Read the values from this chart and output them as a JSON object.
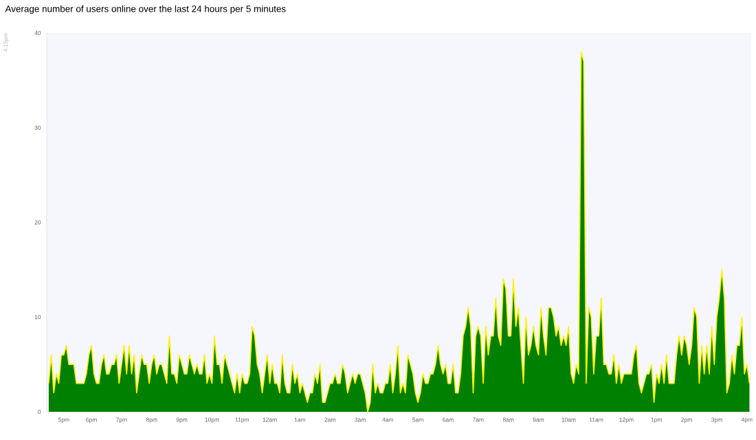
{
  "chart_data": {
    "type": "area",
    "title": "Average number of users online over the last 24 hours per 5 minutes",
    "annotations": [
      "4:15pm"
    ],
    "color": "#008000",
    "ylim": [
      0,
      40
    ],
    "yticks": [
      0,
      10,
      20,
      30,
      40
    ],
    "categories": [
      null,
      null,
      null,
      null,
      null,
      null,
      "5pm",
      null,
      null,
      null,
      null,
      null,
      null,
      null,
      null,
      null,
      null,
      "6pm",
      null,
      null,
      null,
      null,
      null,
      null,
      null,
      null,
      null,
      null,
      null,
      "7pm",
      null,
      null,
      null,
      null,
      null,
      null,
      null,
      null,
      null,
      null,
      null,
      "8pm",
      null,
      null,
      null,
      null,
      null,
      null,
      null,
      null,
      null,
      null,
      null,
      "9pm",
      null,
      null,
      null,
      null,
      null,
      null,
      null,
      null,
      null,
      null,
      null,
      "10pm",
      null,
      null,
      null,
      null,
      null,
      null,
      null,
      null,
      null,
      null,
      null,
      "11pm",
      null,
      null,
      null,
      null,
      null,
      null,
      null,
      null,
      null,
      null,
      "12am",
      null,
      null,
      null,
      null,
      null,
      null,
      null,
      null,
      null,
      null,
      null,
      "1am",
      null,
      null,
      null,
      null,
      null,
      null,
      null,
      null,
      null,
      null,
      null,
      "2am",
      null,
      null,
      null,
      null,
      null,
      null,
      null,
      null,
      null,
      null,
      null,
      "3am",
      null,
      null,
      null,
      null,
      null,
      null,
      null,
      null,
      null,
      null,
      "4am",
      null,
      null,
      null,
      null,
      null,
      null,
      null,
      null,
      null,
      null,
      null,
      "5am",
      null,
      null,
      null,
      null,
      null,
      null,
      null,
      null,
      null,
      null,
      null,
      "6am",
      null,
      null,
      null,
      null,
      null,
      null,
      null,
      null,
      null,
      null,
      null,
      "7am",
      null,
      null,
      null,
      null,
      null,
      null,
      null,
      null,
      null,
      null,
      null,
      "8am",
      null,
      null,
      null,
      null,
      null,
      null,
      null,
      null,
      null,
      null,
      null,
      "9am",
      null,
      null,
      null,
      null,
      null,
      null,
      null,
      null,
      null,
      null,
      null,
      "10am",
      null,
      null,
      null,
      null,
      null,
      null,
      null,
      null,
      null,
      null,
      "11am",
      null,
      null,
      null,
      null,
      null,
      null,
      null,
      null,
      null,
      null,
      null,
      "12pm",
      null,
      null,
      null,
      null,
      null,
      null,
      null,
      null,
      null,
      null,
      null,
      "1pm",
      null,
      null,
      null,
      null,
      null,
      null,
      null,
      null,
      null,
      null,
      null,
      "2pm",
      null,
      null,
      null,
      null,
      null,
      null,
      null,
      null,
      null,
      null,
      null,
      "3pm",
      null,
      null,
      null,
      null,
      null,
      null,
      null,
      null,
      null,
      null,
      null,
      "4pm",
      null
    ],
    "values": [
      3,
      6,
      2,
      4,
      3,
      6,
      6,
      7,
      5,
      5,
      5,
      3,
      3,
      3,
      3,
      4,
      6,
      7,
      4,
      3,
      3,
      5,
      6,
      4,
      4,
      5,
      5,
      6,
      3,
      5,
      7,
      4,
      7,
      4,
      6,
      2,
      4,
      6,
      5,
      5,
      3,
      5,
      6,
      4,
      5,
      5,
      4,
      3,
      8,
      4,
      4,
      3,
      6,
      5,
      4,
      4,
      6,
      5,
      4,
      5,
      4,
      4,
      6,
      3,
      4,
      3,
      8,
      5,
      5,
      3,
      6,
      5,
      4,
      3,
      2,
      4,
      2,
      4,
      3,
      3,
      4,
      9,
      8,
      5,
      4,
      2,
      4,
      6,
      3,
      5,
      3,
      3,
      2,
      6,
      3,
      2,
      2,
      5,
      3,
      4,
      2,
      3,
      2,
      1,
      2,
      2,
      4,
      3,
      5,
      1,
      1,
      2,
      3,
      3,
      4,
      3,
      3,
      5,
      4,
      2,
      3,
      4,
      3,
      4,
      4,
      3,
      2,
      0,
      1,
      5,
      2,
      3,
      2,
      2,
      3,
      3,
      5,
      2,
      4,
      7,
      2,
      3,
      2,
      6,
      5,
      4,
      2,
      1,
      2,
      4,
      3,
      3,
      4,
      4,
      5,
      7,
      5,
      4,
      5,
      3,
      3,
      5,
      2,
      2,
      4,
      8,
      9,
      11,
      9,
      2,
      8,
      9,
      8,
      3,
      9,
      6,
      8,
      8,
      12,
      8,
      7,
      14,
      13,
      8,
      8,
      14,
      9,
      11,
      7,
      3,
      10,
      6,
      7,
      9,
      7,
      6,
      11,
      8,
      6,
      11,
      11,
      10,
      8,
      9,
      7,
      8,
      7,
      9,
      4,
      3,
      5,
      4,
      38,
      37,
      3,
      11,
      10,
      4,
      8,
      8,
      12,
      5,
      5,
      4,
      4,
      6,
      3,
      5,
      3,
      4,
      4,
      4,
      4,
      6,
      7,
      3,
      2,
      3,
      4,
      4,
      5,
      1,
      4,
      3,
      5,
      3,
      6,
      3,
      3,
      3,
      6,
      8,
      6,
      8,
      7,
      5,
      7,
      11,
      10,
      3,
      7,
      4,
      7,
      4,
      9,
      5,
      10,
      12,
      15,
      12,
      2,
      3,
      6,
      4,
      7,
      7,
      10,
      4,
      5,
      3
    ]
  }
}
